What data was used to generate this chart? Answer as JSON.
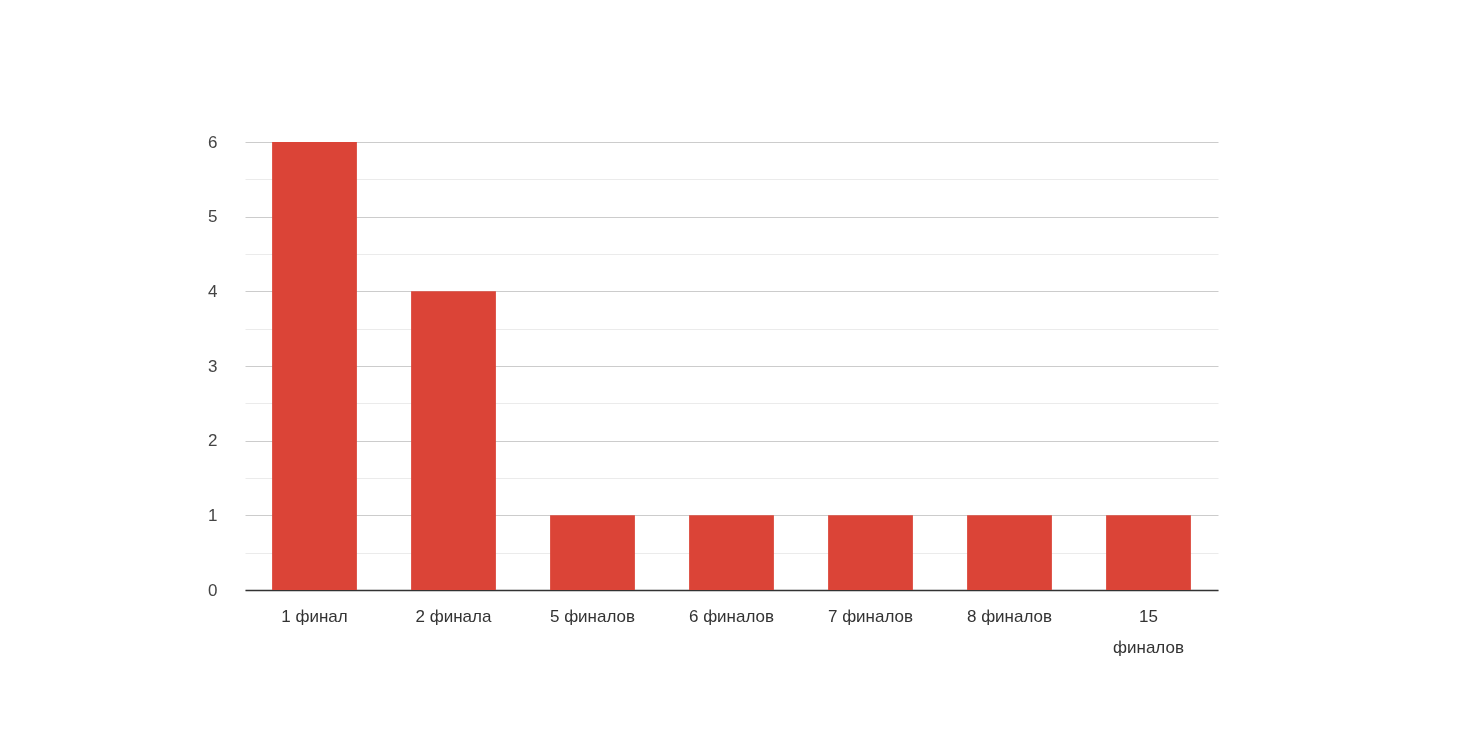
{
  "chart_data": {
    "type": "bar",
    "categories": [
      "1 финал",
      "2 финала",
      "5 финалов",
      "6 финалов",
      "7 финалов",
      "8 финалов",
      "15 финалов"
    ],
    "values": [
      6,
      4,
      1,
      1,
      1,
      1,
      1
    ],
    "color": "#db4437",
    "ylim": [
      0,
      6
    ],
    "yticks": [
      0,
      {
        "value": 0.5,
        "label": null
      },
      1,
      {
        "value": 1.5,
        "label": null
      },
      2,
      {
        "value": 2.5,
        "label": null
      },
      3,
      {
        "value": 3.5,
        "label": null
      },
      4,
      {
        "value": 4.5,
        "label": null
      },
      5,
      {
        "value": 5.5,
        "label": null
      },
      6
    ],
    "grid": true
  }
}
